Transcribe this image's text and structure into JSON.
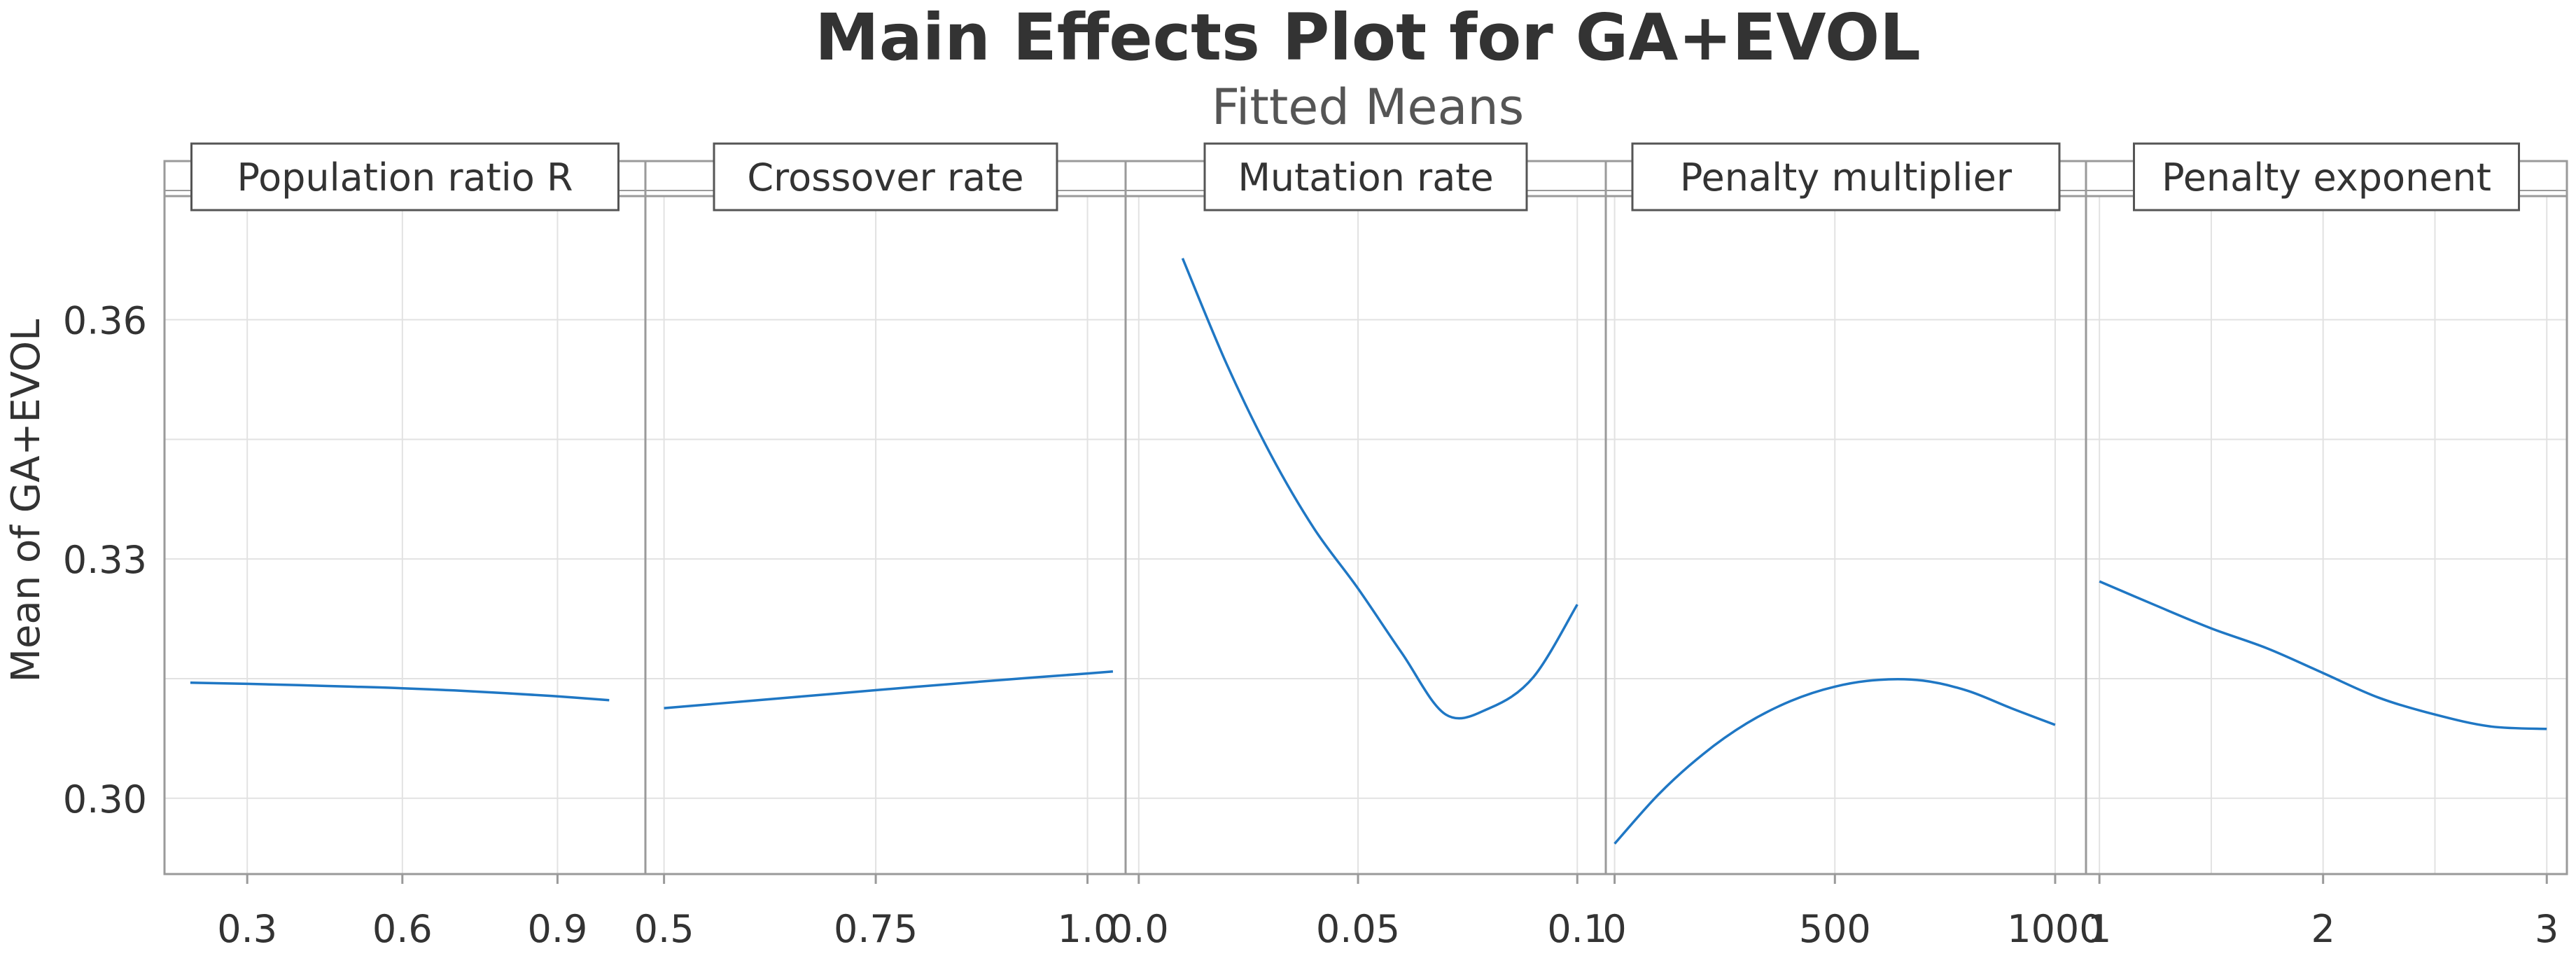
{
  "chart_data": {
    "type": "line",
    "title": "Main Effects Plot for GA+EVOL",
    "subtitle": "Fitted Means",
    "ylabel": "Mean of GA+EVOL",
    "ylim": [
      0.2905,
      0.3755
    ],
    "yticks": [
      {
        "value": 0.3,
        "label": "0.30"
      },
      {
        "value": 0.33,
        "label": "0.33"
      },
      {
        "value": 0.36,
        "label": "0.36"
      }
    ],
    "colors": {
      "line": "#1f77c4",
      "grid": "#e2e2e2",
      "frame": "#9a9a9a",
      "text": "#333333"
    },
    "panels": [
      {
        "title": "Population ratio R",
        "xlim": [
          0.14,
          1.07
        ],
        "ticks": [
          {
            "value": 0.3,
            "label": "0.3"
          },
          {
            "value": 0.6,
            "label": "0.6"
          },
          {
            "value": 0.9,
            "label": "0.9"
          }
        ],
        "gridlines": [
          0.3,
          0.6,
          0.9
        ],
        "x": [
          0.19,
          0.3,
          0.4,
          0.5,
          0.6,
          0.7,
          0.8,
          0.9,
          1.0
        ],
        "y": [
          0.3145,
          0.31435,
          0.31418,
          0.314,
          0.3138,
          0.31352,
          0.31318,
          0.31278,
          0.3123
        ]
      },
      {
        "title": "Crossover rate",
        "xlim": [
          0.478,
          1.045
        ],
        "ticks": [
          {
            "value": 0.5,
            "label": "0.5"
          },
          {
            "value": 0.75,
            "label": "0.75"
          },
          {
            "value": 1.0,
            "label": "1.0"
          }
        ],
        "gridlines": [
          0.5,
          0.75,
          1.0
        ],
        "x": [
          0.5,
          0.6,
          0.7,
          0.8,
          0.9,
          1.0,
          1.03
        ],
        "y": [
          0.3113,
          0.3122,
          0.3131,
          0.314,
          0.31485,
          0.31565,
          0.3159
        ]
      },
      {
        "title": "Mutation rate",
        "xlim": [
          -0.003,
          0.1065
        ],
        "ticks": [
          {
            "value": 0.0,
            "label": "0.0"
          },
          {
            "value": 0.05,
            "label": "0.05"
          },
          {
            "value": 0.1,
            "label": "0.1"
          }
        ],
        "gridlines": [
          0.0,
          0.05,
          0.1
        ],
        "x": [
          0.01,
          0.02,
          0.03,
          0.04,
          0.05,
          0.06,
          0.07,
          0.08,
          0.09,
          0.1
        ],
        "y": [
          0.3677,
          0.3545,
          0.3432,
          0.3338,
          0.3263,
          0.3182,
          0.3105,
          0.3113,
          0.3152,
          0.3243
        ]
      },
      {
        "title": "Penalty multiplier",
        "xlim": [
          -20,
          1070
        ],
        "ticks": [
          {
            "value": 0,
            "label": "0"
          },
          {
            "value": 500,
            "label": "500"
          },
          {
            "value": 1000,
            "label": "1000"
          }
        ],
        "gridlines": [
          0,
          500,
          1000
        ],
        "x": [
          0,
          100,
          200,
          300,
          400,
          500,
          600,
          700,
          800,
          900,
          1000
        ],
        "y": [
          0.2943,
          0.3005,
          0.3055,
          0.3094,
          0.3122,
          0.314,
          0.31485,
          0.31475,
          0.3135,
          0.3113,
          0.3092
        ]
      },
      {
        "title": "Penalty exponent",
        "xlim": [
          0.94,
          3.09
        ],
        "ticks": [
          {
            "value": 1,
            "label": "1"
          },
          {
            "value": 2,
            "label": "2"
          },
          {
            "value": 3,
            "label": "3"
          }
        ],
        "gridlines": [
          1,
          1.5,
          2,
          2.5,
          3
        ],
        "x": [
          1,
          1.25,
          1.5,
          1.75,
          2,
          2.25,
          2.5,
          2.75,
          3
        ],
        "y": [
          0.3272,
          0.3242,
          0.3213,
          0.3188,
          0.3157,
          0.3126,
          0.3105,
          0.309,
          0.3087
        ]
      }
    ]
  }
}
